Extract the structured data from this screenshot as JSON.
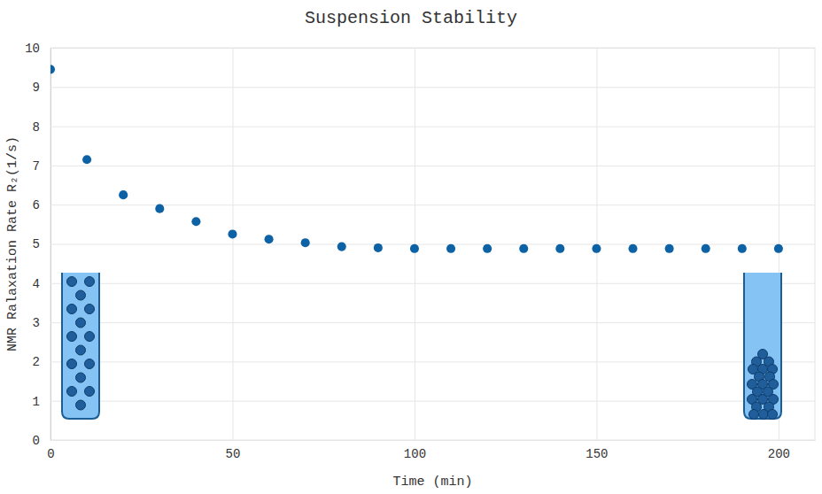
{
  "chart_data": {
    "type": "scatter",
    "title": "Suspension Stability",
    "x_label": "Time (min)",
    "y_label": "NMR Ralaxation Rate R₂(1/s)",
    "x": [
      0,
      10,
      20,
      30,
      40,
      50,
      60,
      70,
      80,
      90,
      100,
      110,
      120,
      130,
      140,
      150,
      160,
      170,
      180,
      190,
      200
    ],
    "values": [
      9.45,
      7.15,
      6.25,
      5.9,
      5.57,
      5.25,
      5.12,
      5.03,
      4.93,
      4.9,
      4.88,
      4.88,
      4.88,
      4.88,
      4.88,
      4.88,
      4.88,
      4.88,
      4.88,
      4.88,
      4.88
    ],
    "color": "#0d62a5",
    "marker": "circle",
    "xlim": [
      0,
      210
    ],
    "ylim": [
      0,
      10
    ],
    "xticks": [
      0,
      50,
      100,
      150,
      200
    ],
    "yticks": [
      0,
      1,
      2,
      3,
      4,
      5,
      6,
      7,
      8,
      9,
      10
    ],
    "grid": true
  }
}
